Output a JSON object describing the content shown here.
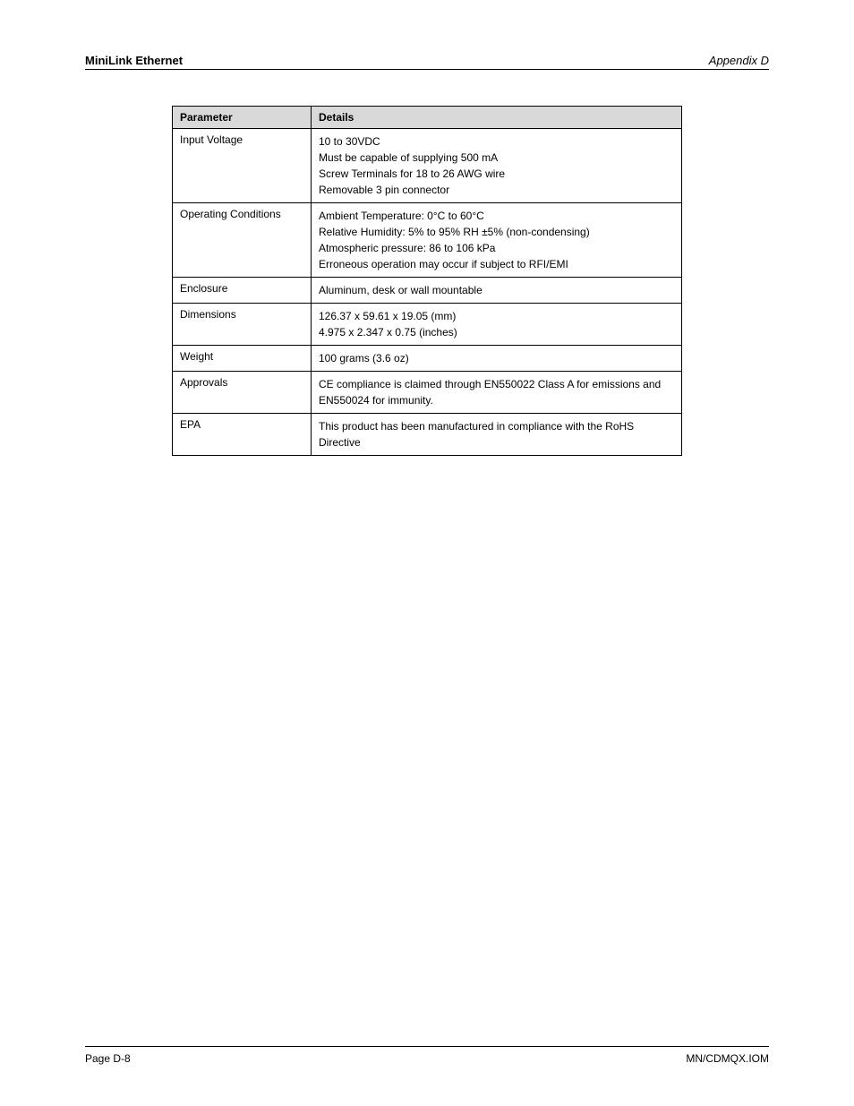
{
  "header": {
    "left": "MiniLink Ethernet",
    "right": "Appendix D"
  },
  "table": {
    "columns": [
      "Parameter",
      "Details"
    ],
    "rows": [
      {
        "param": "Input Voltage",
        "detail": "10 to 30VDC\nMust be capable of supplying 500 mA\nScrew Terminals for 18 to 26 AWG wire\nRemovable 3 pin connector"
      },
      {
        "param": "Operating Conditions",
        "detail": "Ambient Temperature: 0°C to 60°C\nRelative Humidity: 5% to 95% RH ±5% (non-condensing)\nAtmospheric pressure: 86 to 106 kPa\nErroneous operation may occur if subject to RFI/EMI"
      },
      {
        "param": "Enclosure",
        "detail": "Aluminum, desk or wall mountable"
      },
      {
        "param": "Dimensions",
        "detail": "126.37 x 59.61 x 19.05 (mm)\n4.975 x 2.347 x 0.75 (inches)"
      },
      {
        "param": "Weight",
        "detail": "100 grams (3.6 oz)"
      },
      {
        "param": "Approvals",
        "detail": "CE compliance is claimed through EN550022 Class A for emissions and EN550024 for immunity."
      },
      {
        "param": "EPA",
        "detail": "This product has been manufactured in compliance with the RoHS Directive"
      }
    ]
  },
  "footer": {
    "left": "Page D-8",
    "right": "MN/CDMQX.IOM"
  }
}
